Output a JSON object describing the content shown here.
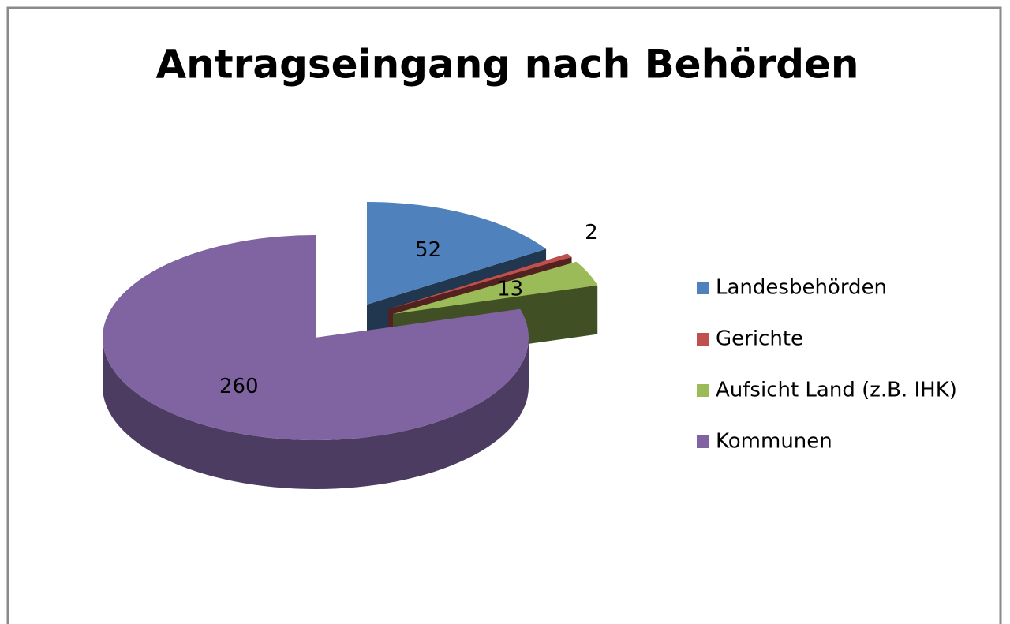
{
  "chart_data": {
    "type": "pie",
    "title": "Antragseingang nach Behörden",
    "categories": [
      "Landesbehörden",
      "Gerichte",
      "Aufsicht Land (z.B. IHK)",
      "Kommunen"
    ],
    "values": [
      52,
      2,
      13,
      260
    ],
    "colors": [
      "#4f81bd",
      "#c0504d",
      "#9bbb59",
      "#8064a2"
    ],
    "legend": "right"
  }
}
